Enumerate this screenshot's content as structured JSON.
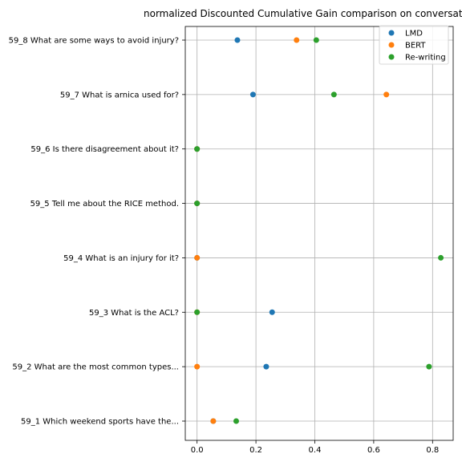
{
  "chart_data": {
    "type": "scatter",
    "title": "normalized Discounted Cumulative Gain comparison on conversat",
    "xlabel": "",
    "ylabel": "",
    "xlim": [
      -0.04,
      0.87
    ],
    "xticks": [
      0.0,
      0.2,
      0.4,
      0.6,
      0.8
    ],
    "xtick_labels": [
      "0.0",
      "0.2",
      "0.4",
      "0.6",
      "0.8"
    ],
    "grid": true,
    "legend_position": "top-right",
    "categories": [
      "59_1 Which weekend sports have the...",
      "59_2 What are the most common types...",
      "59_3 What is the ACL?",
      "59_4 What is an injury for it?",
      "59_5 Tell me about the RICE method.",
      "59_6 Is there disagreement about it?",
      "59_7 What is arnica used for?",
      "59_8 What are some ways to avoid injury?"
    ],
    "series": [
      {
        "name": "LMD",
        "color": "#1f77b4",
        "values": [
          0.055,
          0.235,
          0.255,
          0.0,
          0.0,
          0.0,
          0.19,
          0.137
        ]
      },
      {
        "name": "BERT",
        "color": "#ff7f0e",
        "values": [
          0.055,
          0.0,
          0.0,
          0.0,
          0.0,
          0.0,
          0.643,
          0.338
        ]
      },
      {
        "name": "Re-writing",
        "color": "#2ca02c",
        "values": [
          0.133,
          0.788,
          0.0,
          0.828,
          0.0,
          0.0,
          0.465,
          0.405
        ]
      }
    ]
  }
}
